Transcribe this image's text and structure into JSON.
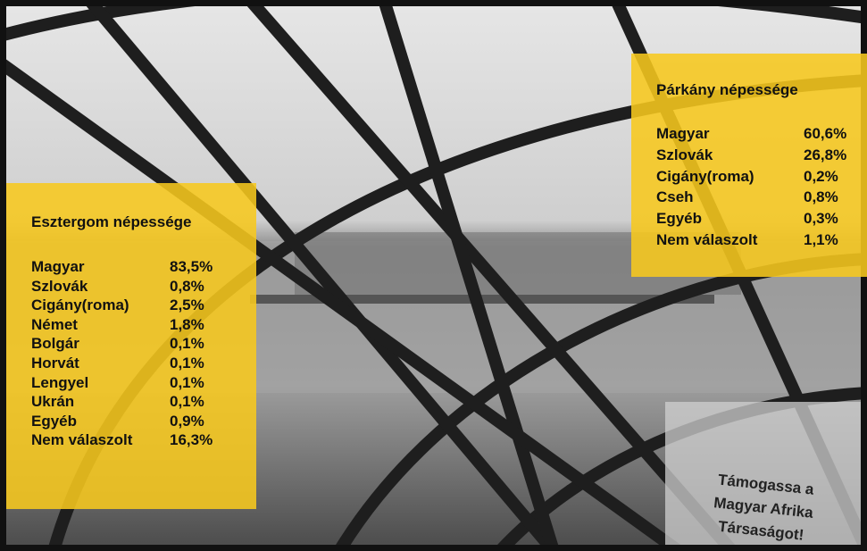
{
  "boxes": [
    {
      "title": "Esztergom népessége",
      "rows": [
        [
          "Magyar",
          "83,5%"
        ],
        [
          "Szlovák",
          "0,8%"
        ],
        [
          "Cigány(roma)",
          "2,5%"
        ],
        [
          "Német",
          "1,8%"
        ],
        [
          "Bolgár",
          "0,1%"
        ],
        [
          "Horvát",
          "0,1%"
        ],
        [
          "Lengyel",
          "0,1%"
        ],
        [
          "Ukrán",
          "0,1%"
        ],
        [
          "Egyéb",
          "0,9%"
        ],
        [
          "Nem válaszolt",
          "16,3%"
        ]
      ]
    },
    {
      "title": "Párkány népessége",
      "rows": [
        [
          "Magyar",
          "60,6%"
        ],
        [
          "Szlovák",
          "26,8%"
        ],
        [
          "Cigány(roma)",
          "0,2%"
        ],
        [
          "Cseh",
          "0,8%"
        ],
        [
          "Egyéb",
          "0,3%"
        ],
        [
          "Nem válaszolt",
          "1,1%"
        ]
      ]
    }
  ],
  "sign": [
    "Támogassa a",
    "Magyar Afrika",
    "Társaságot!"
  ]
}
